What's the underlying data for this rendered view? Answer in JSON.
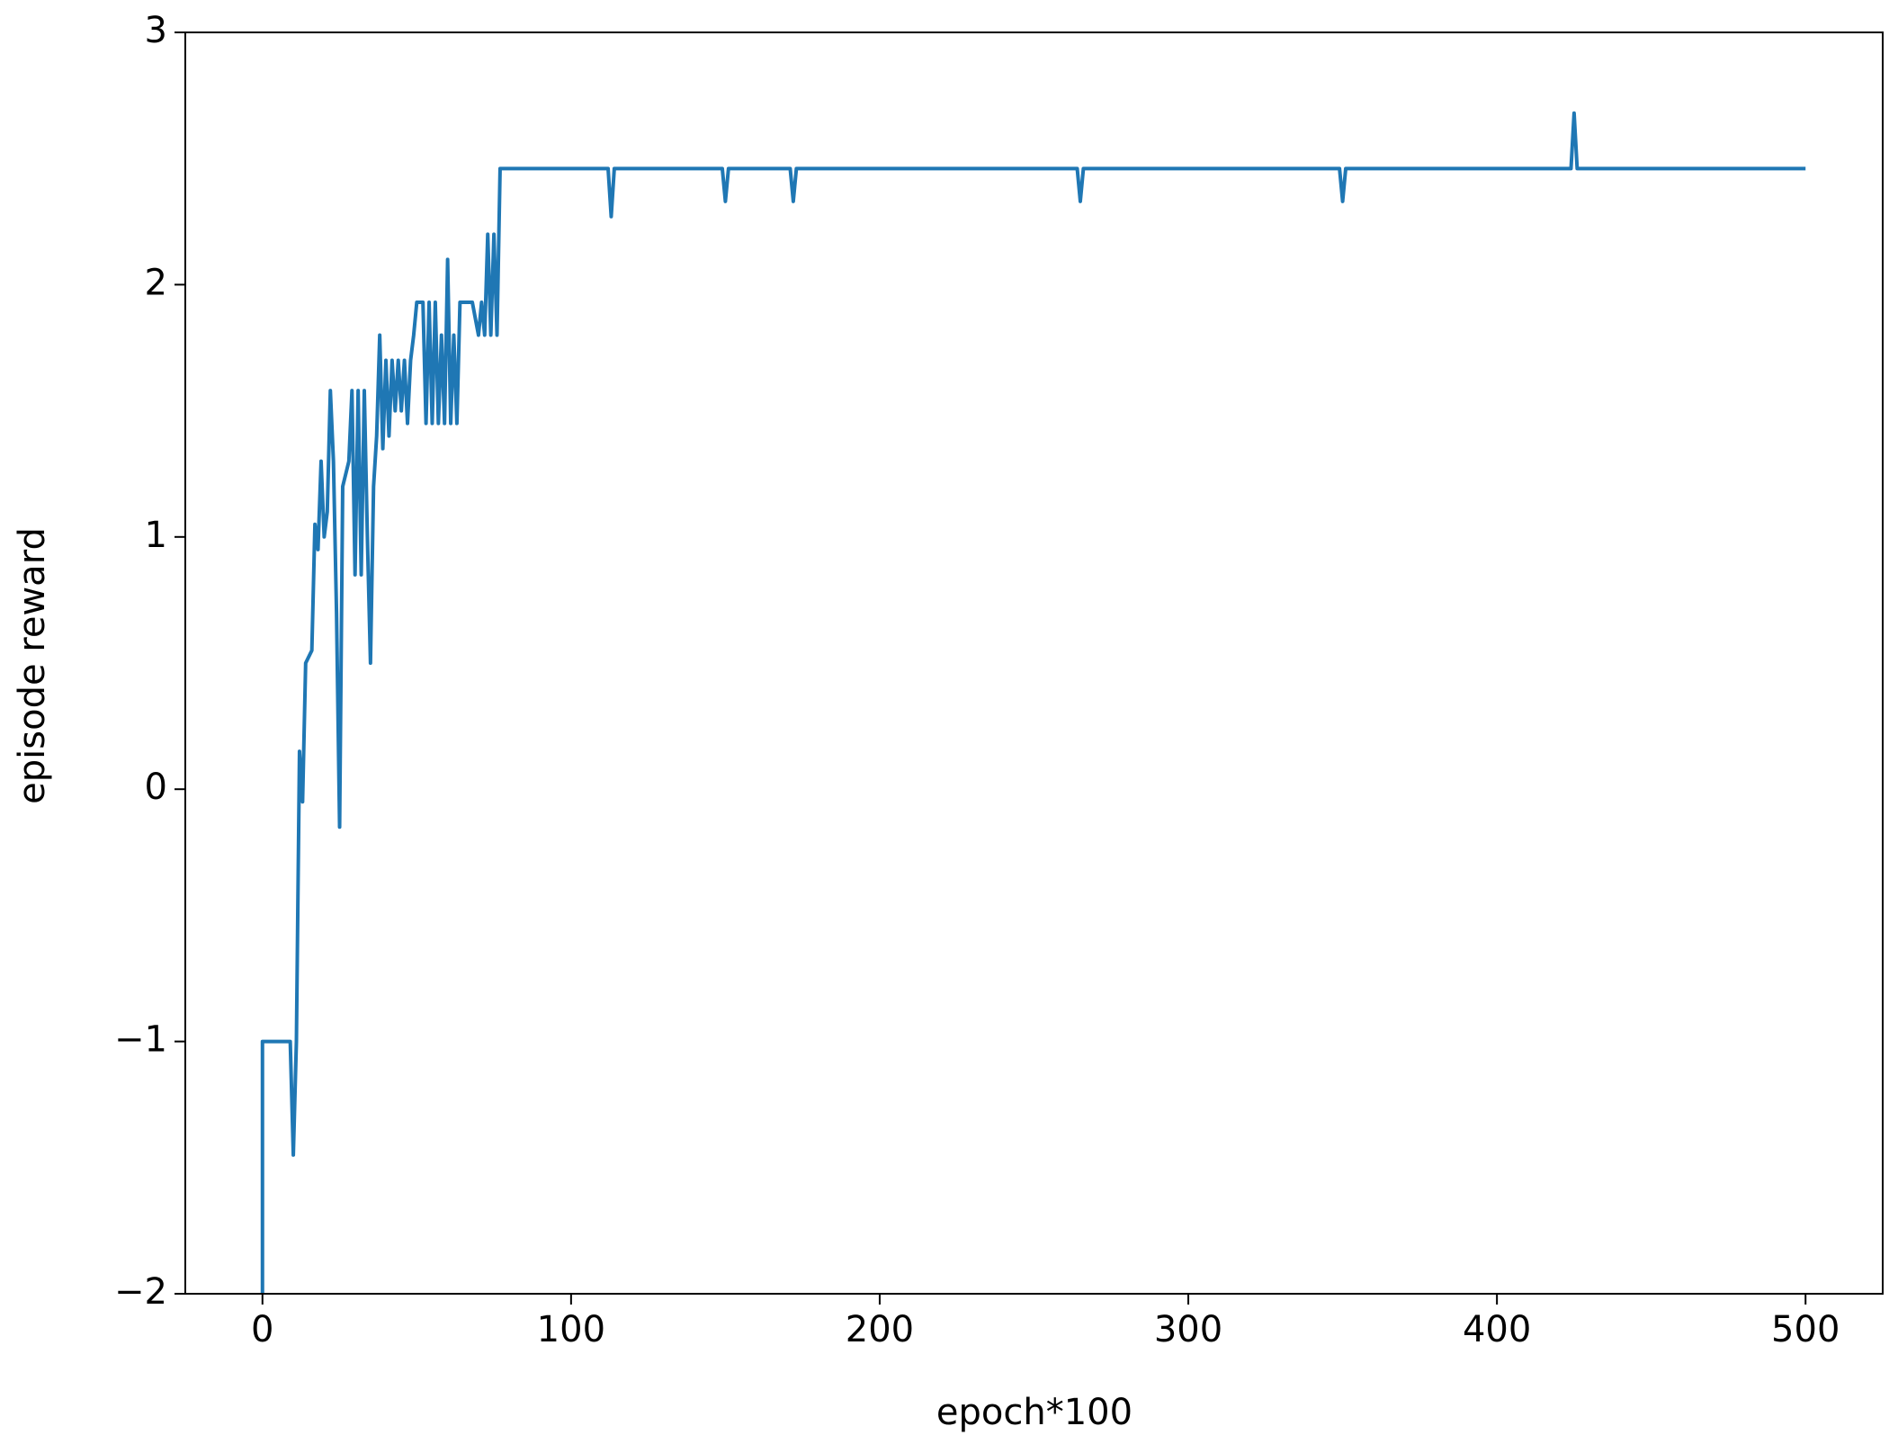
{
  "chart_data": {
    "type": "line",
    "xlabel": "epoch*100",
    "ylabel": "episode reward",
    "color": "#1f77b4",
    "x": [
      0,
      0,
      3,
      6,
      9,
      10,
      11,
      12,
      13,
      14,
      16,
      17,
      18,
      19,
      20,
      21,
      22,
      23,
      24,
      25,
      26,
      28,
      29,
      30,
      31,
      32,
      33,
      34,
      35,
      36,
      37,
      38,
      39,
      40,
      41,
      42,
      43,
      44,
      45,
      46,
      47,
      48,
      49,
      50,
      52,
      53,
      54,
      55,
      56,
      57,
      58,
      59,
      60,
      61,
      62,
      63,
      64,
      66,
      68,
      70,
      71,
      72,
      73,
      74,
      75,
      76,
      77,
      112,
      113,
      114,
      149,
      150,
      151,
      171,
      172,
      173,
      264,
      265,
      266,
      349,
      350,
      351,
      424,
      425,
      426,
      500
    ],
    "values": [
      -2,
      -1,
      -1,
      -1,
      -1,
      -1.45,
      -1,
      0.15,
      -0.05,
      0.5,
      0.55,
      1.05,
      0.95,
      1.3,
      1.0,
      1.1,
      1.58,
      1.3,
      0.7,
      -0.15,
      1.2,
      1.3,
      1.58,
      0.85,
      1.58,
      0.85,
      1.58,
      1.0,
      0.5,
      1.2,
      1.4,
      1.8,
      1.35,
      1.7,
      1.4,
      1.7,
      1.5,
      1.7,
      1.5,
      1.7,
      1.45,
      1.7,
      1.8,
      1.93,
      1.93,
      1.45,
      1.93,
      1.45,
      1.93,
      1.45,
      1.8,
      1.45,
      2.1,
      1.45,
      1.8,
      1.45,
      1.93,
      1.93,
      1.93,
      1.8,
      1.93,
      1.8,
      2.2,
      1.8,
      2.2,
      1.8,
      2.46,
      2.46,
      2.27,
      2.46,
      2.46,
      2.33,
      2.46,
      2.46,
      2.33,
      2.46,
      2.46,
      2.33,
      2.46,
      2.46,
      2.33,
      2.46,
      2.46,
      2.68,
      2.46,
      2.46
    ],
    "xlim": [
      -25,
      525
    ],
    "xticks": [
      0,
      100,
      200,
      300,
      400,
      500
    ],
    "ylim": [
      -2,
      3
    ],
    "yticks": [
      {
        "value": -2,
        "label": "−2"
      },
      {
        "value": -1,
        "label": "−1"
      },
      0,
      1,
      2,
      3
    ]
  }
}
